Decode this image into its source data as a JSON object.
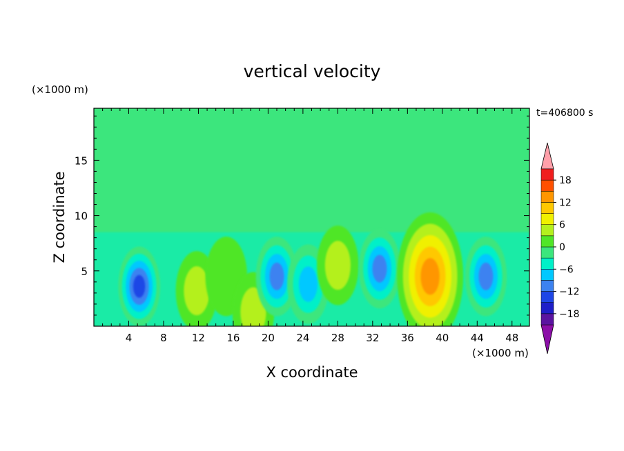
{
  "chart_data": {
    "type": "heatmap",
    "title": "vertical velocity",
    "xlabel": "X coordinate",
    "ylabel": "Z coordinate",
    "x_units": "(×1000 m)",
    "y_units": "(×1000 m)",
    "time_label": "t=406800 s",
    "xlim": [
      0,
      50
    ],
    "ylim": [
      0,
      19.7
    ],
    "x_ticks": [
      4,
      8,
      12,
      16,
      20,
      24,
      28,
      32,
      36,
      40,
      44,
      48
    ],
    "y_ticks": [
      5,
      10,
      15
    ],
    "colorbar": {
      "levels": [
        -21,
        -18,
        -15,
        -12,
        -9,
        -6,
        -3,
        0,
        3,
        6,
        9,
        12,
        15,
        18,
        21
      ],
      "tick_labels": [
        "18",
        "12",
        "6",
        "0",
        "−6",
        "−12",
        "−18"
      ],
      "tick_values": [
        18,
        12,
        6,
        0,
        -6,
        -12,
        -18
      ],
      "colors": [
        "#8c0fa8",
        "#5a14a0",
        "#1e1ec8",
        "#1e46e6",
        "#3c82f0",
        "#00c8ff",
        "#00f0c8",
        "#3ce67d",
        "#50e628",
        "#b4f01e",
        "#f0f000",
        "#ffc800",
        "#ff9600",
        "#ff5000",
        "#f01e1e",
        "#ffa0aa"
      ],
      "extend": "both"
    },
    "features": [
      {
        "name": "downdraft",
        "x": 5.2,
        "z": 3.6,
        "value": -17
      },
      {
        "name": "updraft",
        "x": 11.8,
        "z": 3.2,
        "value": 7
      },
      {
        "name": "updraft",
        "x": 15.2,
        "z": 4.5,
        "value": 5
      },
      {
        "name": "updraft",
        "x": 18.3,
        "z": 1.3,
        "value": 7
      },
      {
        "name": "downdraft",
        "x": 21.0,
        "z": 4.5,
        "value": -12
      },
      {
        "name": "downdraft",
        "x": 24.6,
        "z": 3.8,
        "value": -11
      },
      {
        "name": "updraft",
        "x": 28.0,
        "z": 5.5,
        "value": 6
      },
      {
        "name": "downdraft",
        "x": 32.8,
        "z": 5.2,
        "value": -12
      },
      {
        "name": "updraft",
        "x": 38.6,
        "z": 4.5,
        "value": 16
      },
      {
        "name": "downdraft",
        "x": 45.0,
        "z": 4.5,
        "value": -12
      }
    ]
  }
}
